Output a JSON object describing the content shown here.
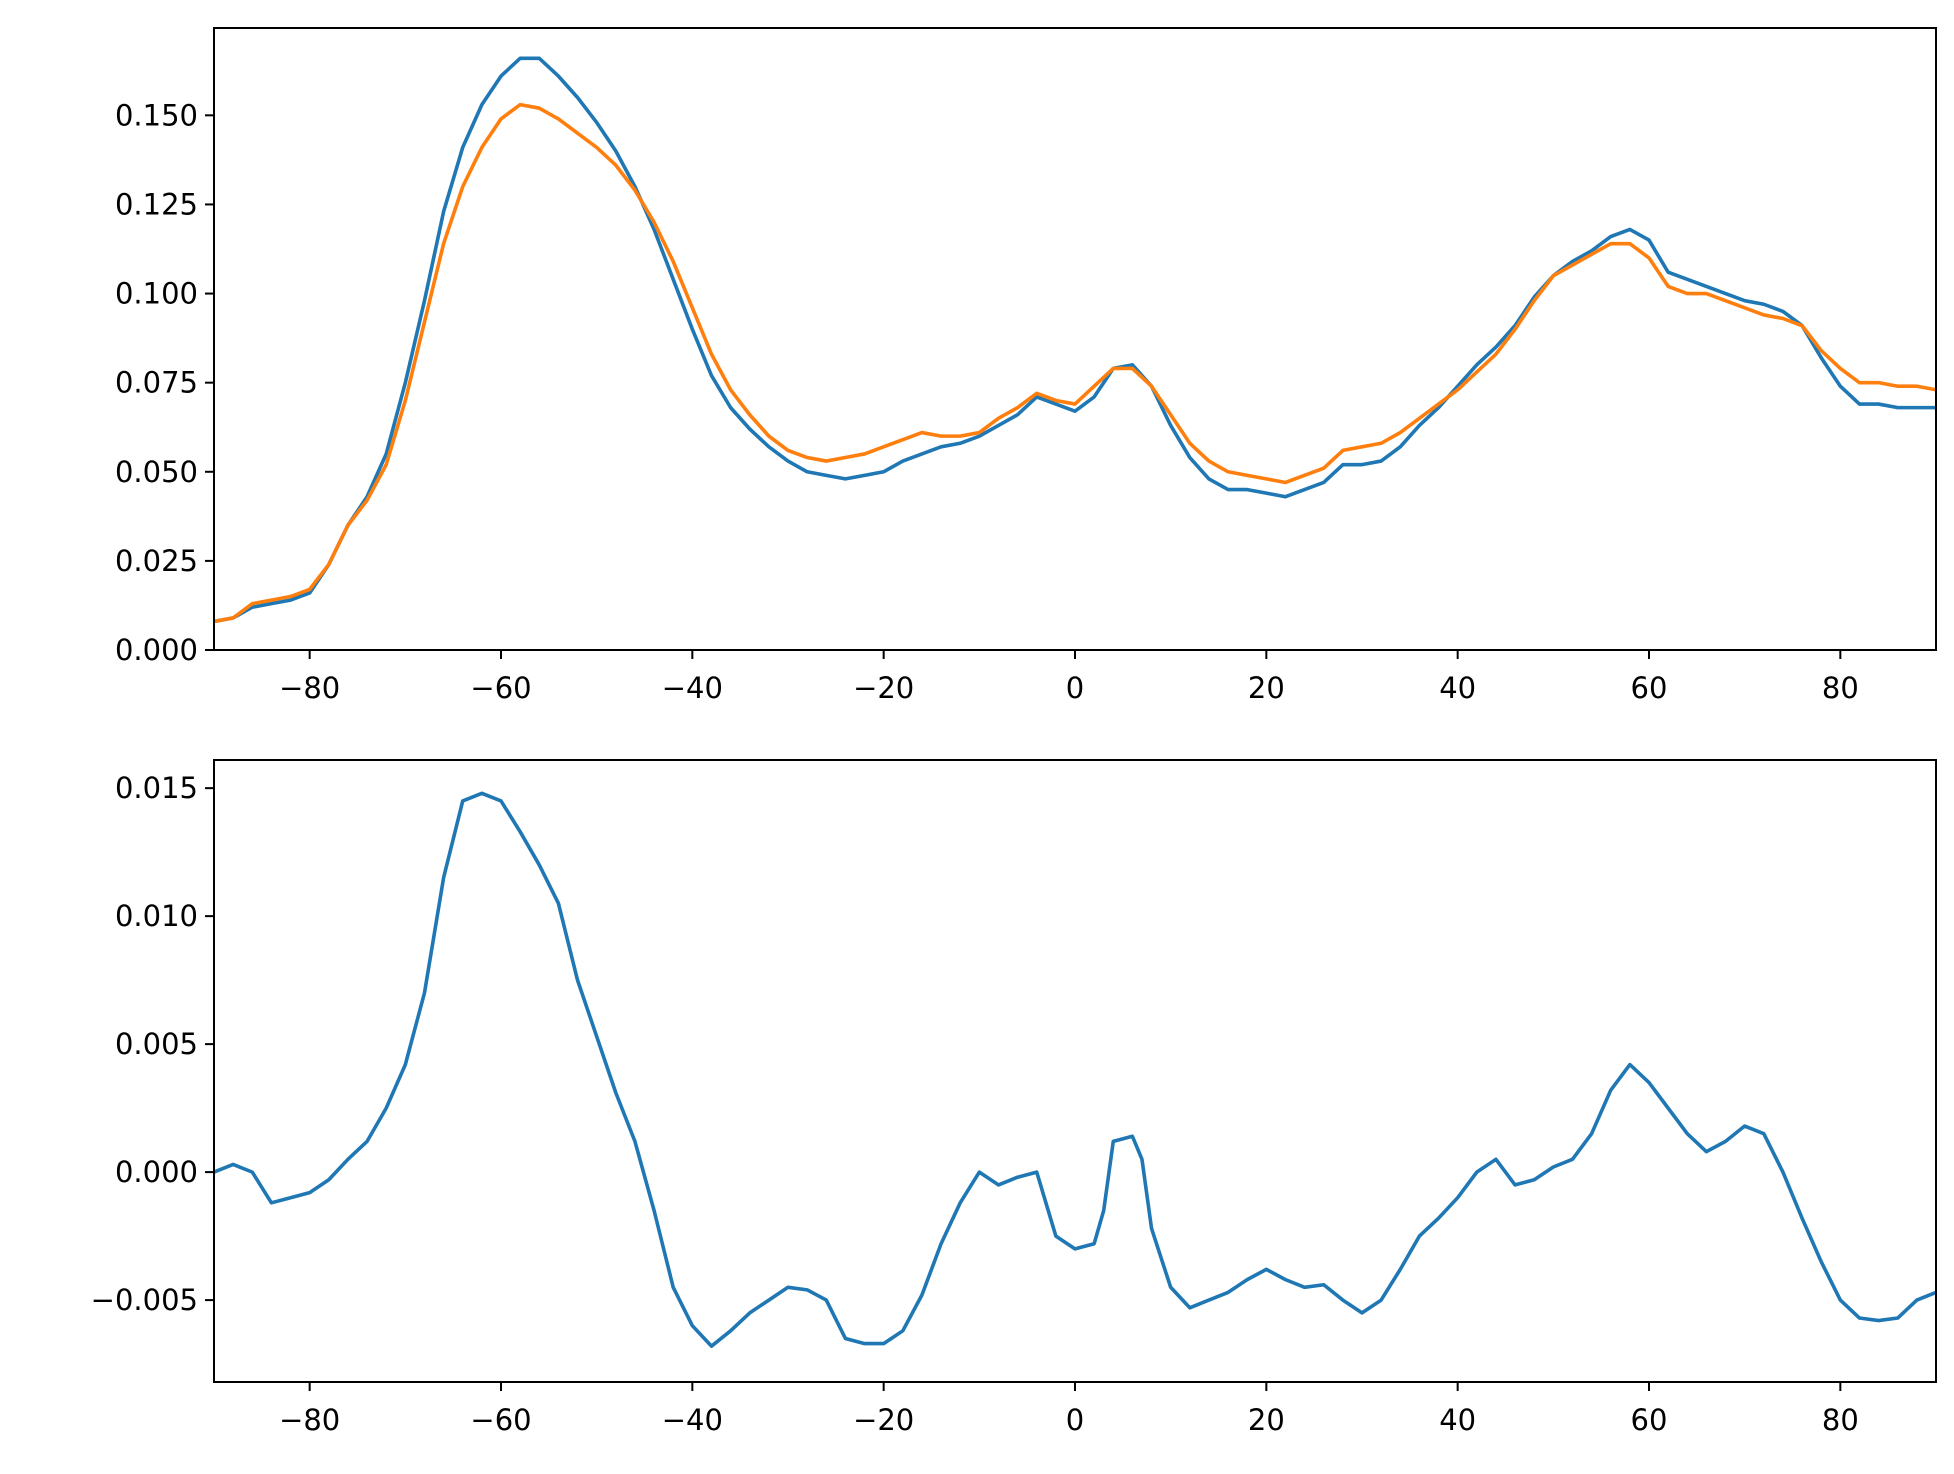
{
  "chart_data": [
    {
      "type": "line",
      "title": "",
      "xlabel": "",
      "ylabel": "",
      "xlim": [
        -90,
        90
      ],
      "ylim": [
        0.0,
        0.1745
      ],
      "grid": false,
      "xticks": [
        -80,
        -60,
        -40,
        -20,
        0,
        20,
        40,
        60,
        80
      ],
      "xtick_labels": [
        "−80",
        "−60",
        "−40",
        "−20",
        "0",
        "20",
        "40",
        "60",
        "80"
      ],
      "yticks": [
        0.0,
        0.025,
        0.05,
        0.075,
        0.1,
        0.125,
        0.15
      ],
      "ytick_labels": [
        "0.000",
        "0.025",
        "0.050",
        "0.075",
        "0.100",
        "0.125",
        "0.150"
      ],
      "series": [
        {
          "color": "#1f77b4",
          "x": [
            -90,
            -88,
            -86,
            -84,
            -82,
            -80,
            -78,
            -76,
            -74,
            -72,
            -70,
            -68,
            -66,
            -64,
            -62,
            -60,
            -58,
            -56,
            -54,
            -52,
            -50,
            -48,
            -46,
            -44,
            -42,
            -40,
            -38,
            -36,
            -34,
            -32,
            -30,
            -28,
            -26,
            -24,
            -22,
            -20,
            -18,
            -16,
            -14,
            -12,
            -10,
            -8,
            -6,
            -4,
            -2,
            0,
            2,
            4,
            6,
            8,
            10,
            12,
            14,
            16,
            18,
            20,
            22,
            24,
            26,
            28,
            30,
            32,
            34,
            36,
            38,
            40,
            42,
            44,
            46,
            48,
            50,
            52,
            54,
            56,
            58,
            60,
            62,
            64,
            66,
            68,
            70,
            72,
            74,
            76,
            78,
            80,
            82,
            84,
            86,
            88,
            90
          ],
          "y": [
            0.008,
            0.009,
            0.012,
            0.013,
            0.014,
            0.016,
            0.024,
            0.035,
            0.043,
            0.055,
            0.075,
            0.098,
            0.123,
            0.141,
            0.153,
            0.161,
            0.166,
            0.166,
            0.161,
            0.155,
            0.148,
            0.14,
            0.13,
            0.118,
            0.104,
            0.09,
            0.077,
            0.068,
            0.062,
            0.057,
            0.053,
            0.05,
            0.049,
            0.048,
            0.049,
            0.05,
            0.053,
            0.055,
            0.057,
            0.058,
            0.06,
            0.063,
            0.066,
            0.071,
            0.069,
            0.067,
            0.071,
            0.079,
            0.08,
            0.074,
            0.063,
            0.054,
            0.048,
            0.045,
            0.045,
            0.044,
            0.043,
            0.045,
            0.047,
            0.052,
            0.052,
            0.053,
            0.057,
            0.063,
            0.068,
            0.074,
            0.08,
            0.085,
            0.091,
            0.099,
            0.105,
            0.109,
            0.112,
            0.116,
            0.118,
            0.115,
            0.106,
            0.104,
            0.102,
            0.1,
            0.098,
            0.097,
            0.095,
            0.091,
            0.082,
            0.074,
            0.069,
            0.069,
            0.068,
            0.068,
            0.068
          ]
        },
        {
          "color": "#ff7f0e",
          "x": [
            -90,
            -88,
            -86,
            -84,
            -82,
            -80,
            -78,
            -76,
            -74,
            -72,
            -70,
            -68,
            -66,
            -64,
            -62,
            -60,
            -58,
            -56,
            -54,
            -52,
            -50,
            -48,
            -46,
            -44,
            -42,
            -40,
            -38,
            -36,
            -34,
            -32,
            -30,
            -28,
            -26,
            -24,
            -22,
            -20,
            -18,
            -16,
            -14,
            -12,
            -10,
            -8,
            -6,
            -4,
            -2,
            0,
            2,
            4,
            6,
            8,
            10,
            12,
            14,
            16,
            18,
            20,
            22,
            24,
            26,
            28,
            30,
            32,
            34,
            36,
            38,
            40,
            42,
            44,
            46,
            48,
            50,
            52,
            54,
            56,
            58,
            60,
            62,
            64,
            66,
            68,
            70,
            72,
            74,
            76,
            78,
            80,
            82,
            84,
            86,
            88,
            90
          ],
          "y": [
            0.008,
            0.009,
            0.013,
            0.014,
            0.015,
            0.017,
            0.024,
            0.035,
            0.042,
            0.052,
            0.07,
            0.092,
            0.114,
            0.13,
            0.141,
            0.149,
            0.153,
            0.152,
            0.149,
            0.145,
            0.141,
            0.136,
            0.129,
            0.12,
            0.109,
            0.096,
            0.083,
            0.073,
            0.066,
            0.06,
            0.056,
            0.054,
            0.053,
            0.054,
            0.055,
            0.057,
            0.059,
            0.061,
            0.06,
            0.06,
            0.061,
            0.065,
            0.068,
            0.072,
            0.07,
            0.069,
            0.074,
            0.079,
            0.079,
            0.074,
            0.066,
            0.058,
            0.053,
            0.05,
            0.049,
            0.048,
            0.047,
            0.049,
            0.051,
            0.056,
            0.057,
            0.058,
            0.061,
            0.065,
            0.069,
            0.073,
            0.078,
            0.083,
            0.09,
            0.098,
            0.105,
            0.108,
            0.111,
            0.114,
            0.114,
            0.11,
            0.102,
            0.1,
            0.1,
            0.098,
            0.096,
            0.094,
            0.093,
            0.091,
            0.084,
            0.079,
            0.075,
            0.075,
            0.074,
            0.074,
            0.073
          ]
        }
      ]
    },
    {
      "type": "line",
      "title": "",
      "xlabel": "",
      "ylabel": "",
      "xlim": [
        -90,
        90
      ],
      "ylim": [
        -0.0082,
        0.0161
      ],
      "grid": false,
      "xticks": [
        -80,
        -60,
        -40,
        -20,
        0,
        20,
        40,
        60,
        80
      ],
      "xtick_labels": [
        "−80",
        "−60",
        "−40",
        "−20",
        "0",
        "20",
        "40",
        "60",
        "80"
      ],
      "yticks": [
        -0.005,
        0.0,
        0.005,
        0.01,
        0.015
      ],
      "ytick_labels": [
        "−0.005",
        "0.000",
        "0.005",
        "0.010",
        "0.015"
      ],
      "series": [
        {
          "color": "#1f77b4",
          "x": [
            -90,
            -88,
            -86,
            -84,
            -82,
            -80,
            -78,
            -76,
            -74,
            -72,
            -70,
            -68,
            -66,
            -64,
            -62,
            -60,
            -58,
            -56,
            -54,
            -52,
            -50,
            -48,
            -46,
            -44,
            -42,
            -40,
            -38,
            -36,
            -34,
            -32,
            -30,
            -28,
            -26,
            -24,
            -22,
            -20,
            -18,
            -16,
            -14,
            -12,
            -10,
            -8,
            -6,
            -4,
            -2,
            0,
            2,
            3,
            4,
            6,
            7,
            8,
            10,
            12,
            14,
            16,
            18,
            20,
            22,
            24,
            26,
            28,
            30,
            32,
            34,
            36,
            38,
            40,
            42,
            44,
            46,
            48,
            50,
            52,
            54,
            56,
            58,
            60,
            62,
            64,
            66,
            68,
            70,
            72,
            74,
            76,
            78,
            80,
            82,
            84,
            86,
            88,
            90
          ],
          "y": [
            0.0,
            0.0003,
            0.0,
            -0.0012,
            -0.001,
            -0.0008,
            -0.0003,
            0.0005,
            0.0012,
            0.0025,
            0.0042,
            0.007,
            0.0115,
            0.0145,
            0.0148,
            0.0145,
            0.0133,
            0.012,
            0.0105,
            0.0075,
            0.0053,
            0.0031,
            0.0012,
            -0.0015,
            -0.0045,
            -0.006,
            -0.0068,
            -0.0062,
            -0.0055,
            -0.005,
            -0.0045,
            -0.0046,
            -0.005,
            -0.0065,
            -0.0067,
            -0.0067,
            -0.0062,
            -0.0048,
            -0.0028,
            -0.0012,
            0.0,
            -0.0005,
            -0.0002,
            0.0,
            -0.0025,
            -0.003,
            -0.0028,
            -0.0015,
            0.0012,
            0.0014,
            0.0005,
            -0.0022,
            -0.0045,
            -0.0053,
            -0.005,
            -0.0047,
            -0.0042,
            -0.0038,
            -0.0042,
            -0.0045,
            -0.0044,
            -0.005,
            -0.0055,
            -0.005,
            -0.0038,
            -0.0025,
            -0.0018,
            -0.001,
            0.0,
            0.0005,
            -0.0005,
            -0.0003,
            0.0002,
            0.0005,
            0.0015,
            0.0032,
            0.0042,
            0.0035,
            0.0025,
            0.0015,
            0.0008,
            0.0012,
            0.0018,
            0.0015,
            0.0,
            -0.0018,
            -0.0035,
            -0.005,
            -0.0057,
            -0.0058,
            -0.0057,
            -0.005,
            -0.0047
          ]
        }
      ]
    }
  ]
}
